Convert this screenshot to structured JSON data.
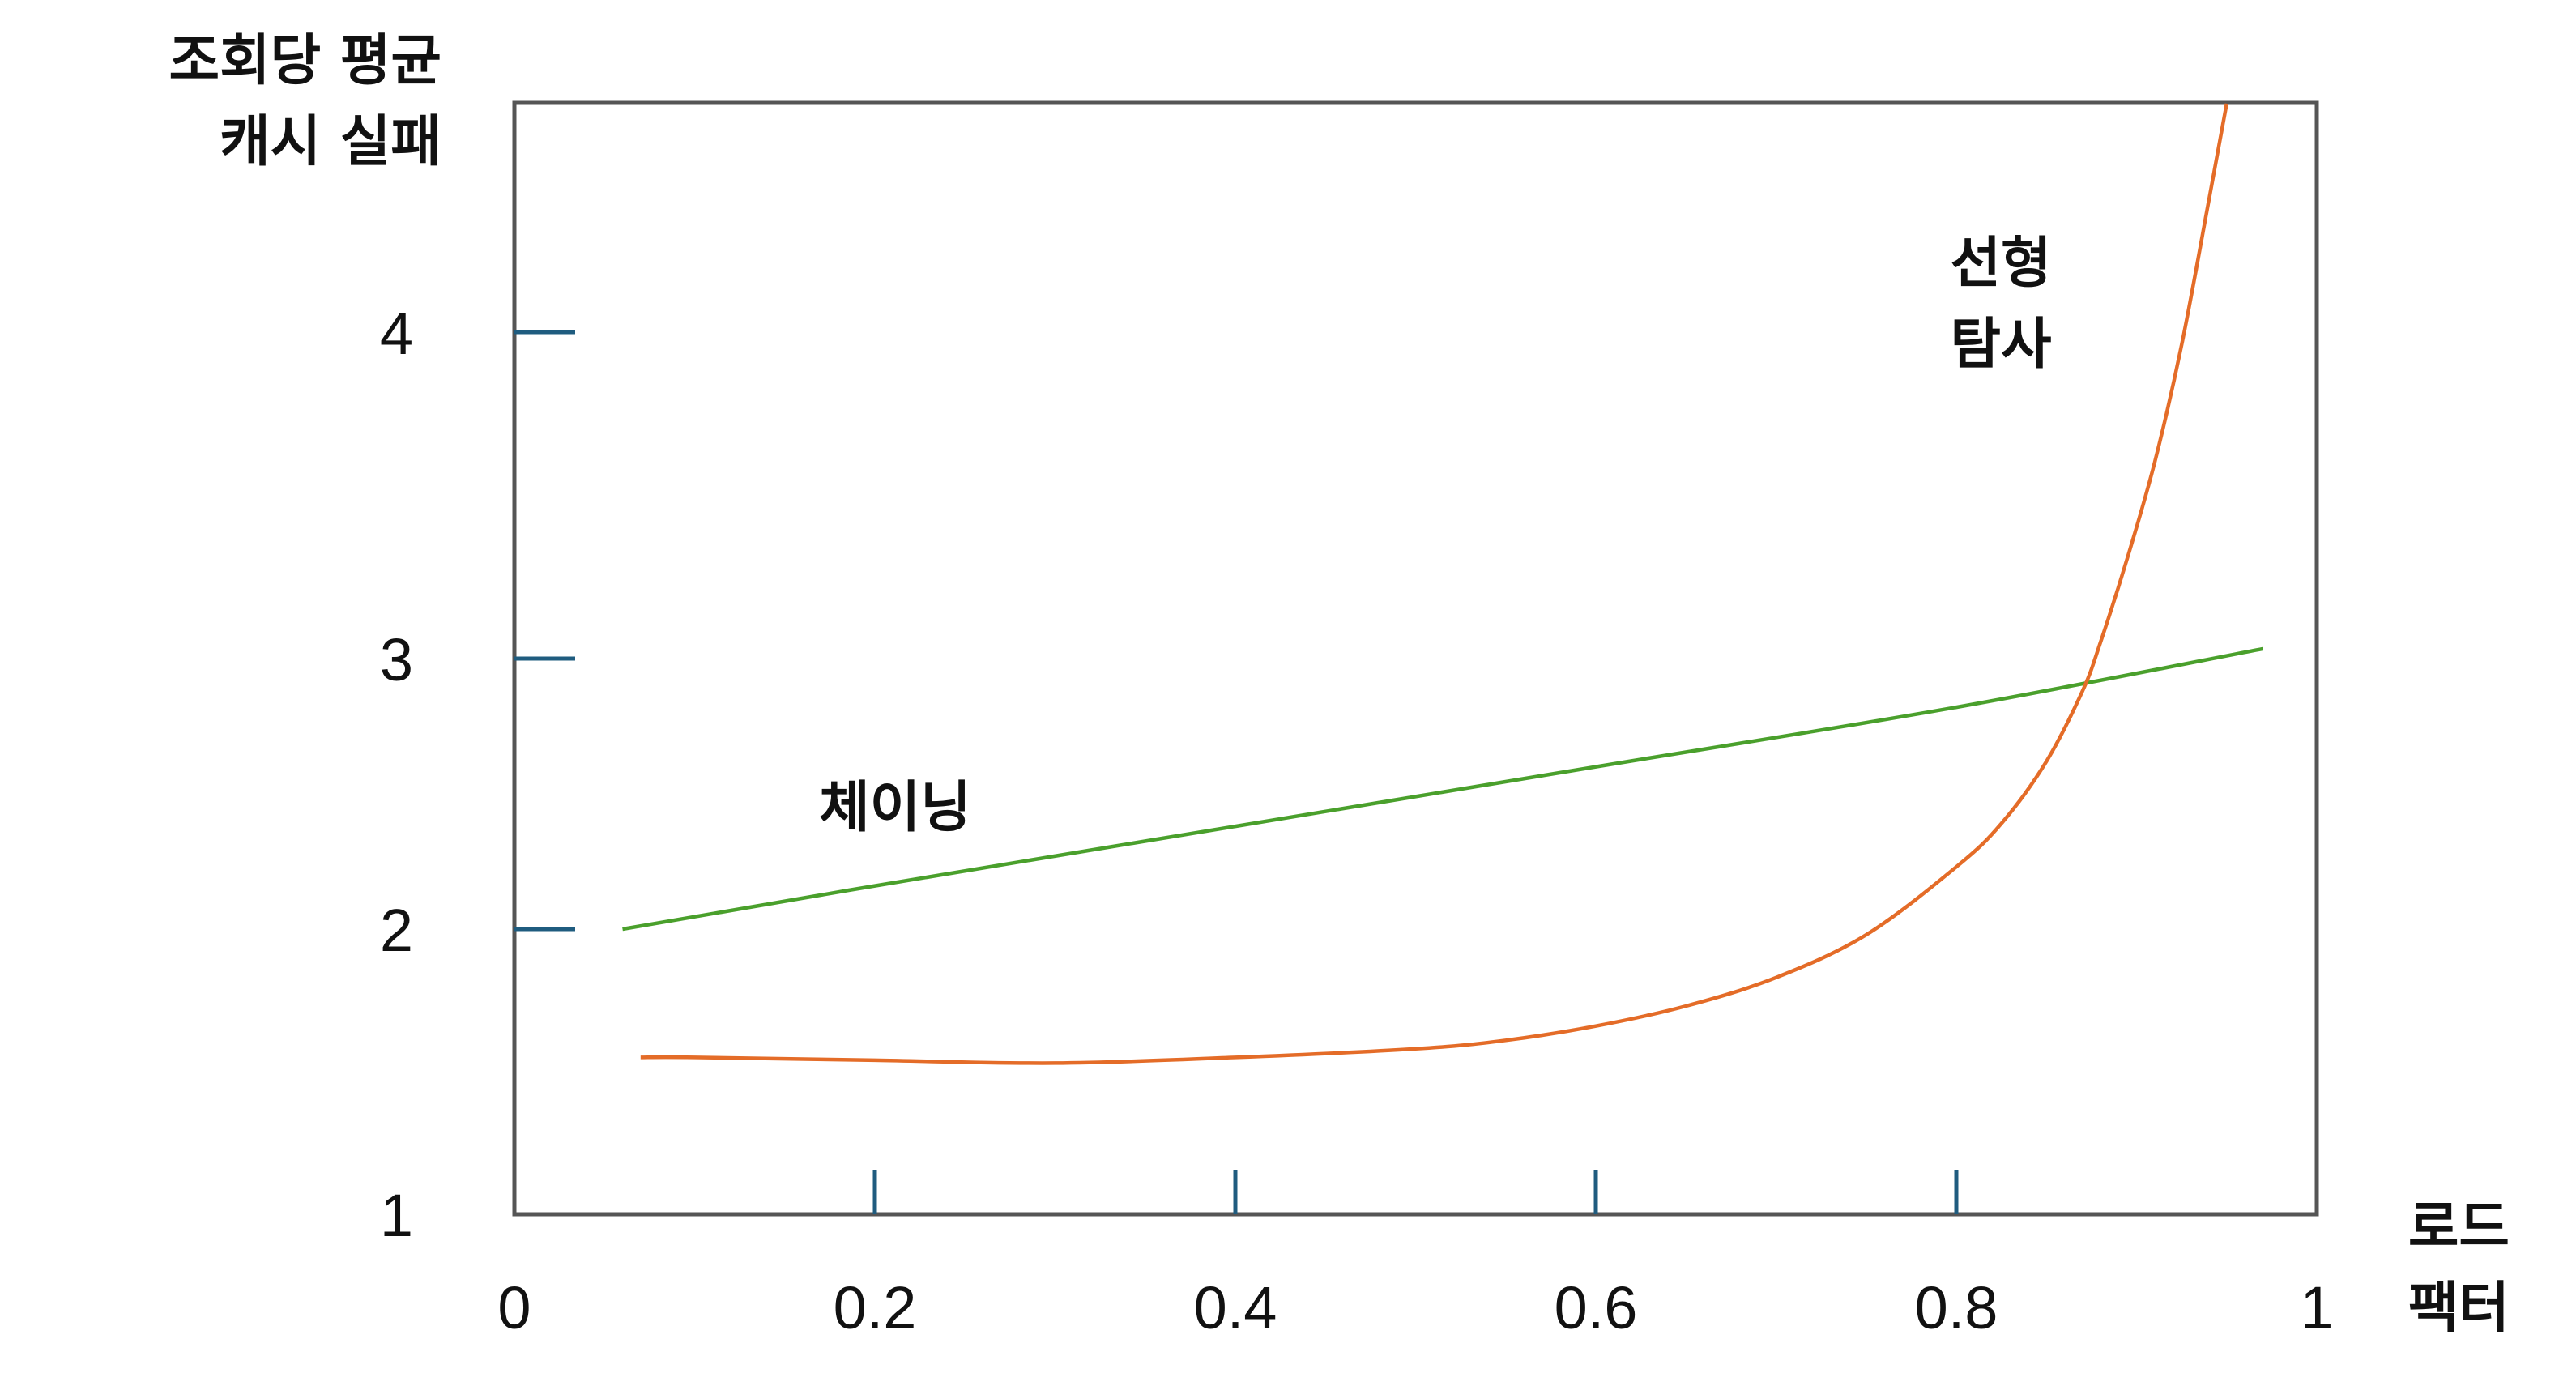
{
  "chart_data": {
    "type": "line",
    "title": "",
    "ylabel_lines": [
      "조회당 평균",
      "캐시 실패"
    ],
    "xlabel_lines": [
      "로드",
      "팩터"
    ],
    "xlim": [
      0,
      1
    ],
    "ylim": [
      1,
      4.5
    ],
    "x_ticks": [
      0,
      0.2,
      0.4,
      0.6,
      0.8,
      1
    ],
    "x_tick_labels": [
      "0",
      "0.2",
      "0.4",
      "0.6",
      "0.8",
      "1"
    ],
    "y_ticks": [
      1,
      2,
      3,
      4
    ],
    "y_tick_labels": [
      "1",
      "2",
      "3",
      "4"
    ],
    "grid": false,
    "colors": {
      "frame": "#555555",
      "tick": "#1f5c7f",
      "chaining": "#4aa02c",
      "linear_probing": "#e46c28"
    },
    "series": [
      {
        "name": "체이닝",
        "label_lines": [
          "체이닝"
        ],
        "color": "#4aa02c",
        "x": [
          0.06,
          0.2,
          0.4,
          0.6,
          0.8,
          0.97
        ],
        "y": [
          2.0,
          2.16,
          2.38,
          2.6,
          2.82,
          3.03
        ]
      },
      {
        "name": "선형 탐사",
        "label_lines": [
          "선형",
          "탐사"
        ],
        "color": "#e46c28",
        "x": [
          0.07,
          0.1,
          0.2,
          0.3,
          0.4,
          0.5,
          0.55,
          0.6,
          0.65,
          0.7,
          0.75,
          0.8,
          0.825,
          0.85,
          0.87,
          0.88,
          0.895,
          0.91,
          0.925,
          0.94,
          0.95
        ],
        "y": [
          1.55,
          1.55,
          1.54,
          1.53,
          1.55,
          1.58,
          1.61,
          1.66,
          1.73,
          1.83,
          1.98,
          2.23,
          2.39,
          2.62,
          2.88,
          3.05,
          3.31,
          3.6,
          3.96,
          4.4,
          4.7
        ]
      }
    ]
  }
}
